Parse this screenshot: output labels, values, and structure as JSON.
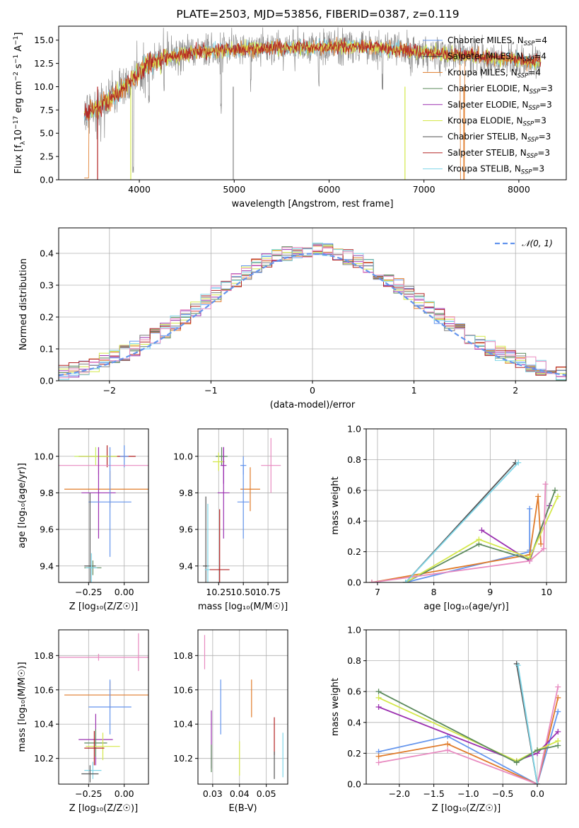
{
  "colors": {
    "tab_blue": "#1f77b4",
    "corn": "#6495ed",
    "orange": "#e07b2a",
    "green": "#5c8a5c",
    "purple": "#9b30b0",
    "yellow": "#d4e84a",
    "gray": "#808080",
    "red": "#b22222",
    "cyan": "#7fd6e8",
    "pink": "#e88ac0",
    "lime": "#c8f060"
  },
  "chart_data": [
    {
      "id": "spectrum",
      "type": "line",
      "title": "PLATE=2503, MJD=53856, FIBERID=0387, z=0.119",
      "xlabel": "wavelength [Angstrom, rest frame]",
      "ylabel": "Flux [f_λ10^{-17} erg cm^{-2} s^{-1} A^{-1}]",
      "xlim": [
        3150,
        8500
      ],
      "ylim": [
        0,
        16.5
      ],
      "xticks": [
        4000,
        5000,
        6000,
        7000,
        8000
      ],
      "yticks": [
        0.0,
        2.5,
        5.0,
        7.5,
        10.0,
        12.5,
        15.0
      ],
      "ytick_labels": [
        "0.0",
        "2.5",
        "5.0",
        "7.5",
        "10.0",
        "12.5",
        "15.0"
      ],
      "legend_position": "right",
      "legend": [
        {
          "base": "Chabrier MILES, N",
          "sub": "SSP",
          "tail": "=4",
          "color": "#6495ed"
        },
        {
          "base": "Salpeter MILES, N",
          "sub": "SSP",
          "tail": "=4",
          "color": "#333333"
        },
        {
          "base": "Kroupa MILES, N",
          "sub": "SSP",
          "tail": "=4",
          "color": "#e07b2a"
        },
        {
          "base": "Chabrier ELODIE, N",
          "sub": "SSP",
          "tail": "=3",
          "color": "#5c8a5c"
        },
        {
          "base": "Salpeter ELODIE, N",
          "sub": "SSP",
          "tail": "=3",
          "color": "#9b30b0"
        },
        {
          "base": "Kroupa ELODIE, N",
          "sub": "SSP",
          "tail": "=3",
          "color": "#d4e84a"
        },
        {
          "base": "Chabrier STELIB, N",
          "sub": "SSP",
          "tail": "=3",
          "color": "#555555"
        },
        {
          "base": "Salpeter STELIB, N",
          "sub": "SSP",
          "tail": "=3",
          "color": "#b22222"
        },
        {
          "base": "Kroupa STELIB, N",
          "sub": "SSP",
          "tail": "=3",
          "color": "#7fd6e8"
        }
      ],
      "continuum": [
        [
          3420,
          7.0
        ],
        [
          3600,
          8.0
        ],
        [
          3800,
          9.5
        ],
        [
          3950,
          11.0
        ],
        [
          4100,
          12.5
        ],
        [
          4300,
          13.2
        ],
        [
          4600,
          13.8
        ],
        [
          5000,
          14.0
        ],
        [
          5500,
          14.2
        ],
        [
          6000,
          14.3
        ],
        [
          6500,
          14.2
        ],
        [
          7000,
          13.7
        ],
        [
          7500,
          13.3
        ],
        [
          8000,
          12.8
        ],
        [
          8230,
          12.5
        ]
      ],
      "absorption_lines": [
        [
          3934,
          0.5
        ],
        [
          4102,
          8.0
        ],
        [
          4861,
          7.0
        ],
        [
          5175,
          9.0
        ],
        [
          5890,
          10.0
        ],
        [
          6563,
          9.5
        ],
        [
          6860,
          11.0
        ],
        [
          7600,
          11.0
        ]
      ]
    },
    {
      "id": "residuals",
      "type": "histogram",
      "xlabel": "(data-model)/error",
      "ylabel": "Normed distribution",
      "xlim": [
        -2.5,
        2.5
      ],
      "ylim": [
        0,
        0.48
      ],
      "xticks": [
        -2,
        -1,
        0,
        1,
        2
      ],
      "xtick_labels": [
        "−2",
        "−1",
        "0",
        "1",
        "2"
      ],
      "yticks": [
        0.0,
        0.1,
        0.2,
        0.3,
        0.4
      ],
      "ytick_labels": [
        "0.0",
        "0.1",
        "0.2",
        "0.3",
        "0.4"
      ],
      "legend": {
        "label": "𝒩(0, 1)",
        "color": "#6495ed"
      },
      "bin_width": 0.1,
      "grid": true
    },
    {
      "id": "age_vs_Z",
      "type": "errorbar",
      "xlabel": "Z [log₁₀(Z/Z☉)]",
      "ylabel": "age  [log₁₀(age/yr)]",
      "xlim": [
        -0.46,
        0.17
      ],
      "ylim": [
        9.31,
        10.15
      ],
      "xticks": [
        -0.25,
        0.0
      ],
      "xtick_labels": [
        "−0.25",
        "0.00"
      ],
      "yticks": [
        9.4,
        9.6,
        9.8,
        10.0
      ],
      "ytick_labels": [
        "9.4",
        "9.6",
        "9.8",
        "10.0"
      ],
      "points": [
        {
          "x": -0.12,
          "y": 10.0,
          "xerr": 0.2,
          "yerr": 0.06,
          "color": "#b22222"
        },
        {
          "x": -0.2,
          "y": 10.0,
          "xerr": 0.15,
          "yerr": 0.05,
          "color": "#c8f060"
        },
        {
          "x": 0.0,
          "y": 10.0,
          "xerr": 0.03,
          "yerr": 0.06,
          "color": "#6495ed"
        },
        {
          "x": -0.18,
          "y": 9.95,
          "xerr": 0.42,
          "yerr": 0.05,
          "color": "#e88ac0"
        },
        {
          "x": -0.1,
          "y": 9.82,
          "xerr": 0.32,
          "yerr": 0.1,
          "color": "#e07b2a"
        },
        {
          "x": -0.18,
          "y": 9.8,
          "xerr": 0.12,
          "yerr": 0.25,
          "color": "#9b30b0"
        },
        {
          "x": -0.1,
          "y": 9.75,
          "xerr": 0.15,
          "yerr": 0.3,
          "color": "#6495ed"
        },
        {
          "x": -0.24,
          "y": 9.4,
          "xerr": 0.04,
          "yerr": 0.4,
          "color": "#555555"
        },
        {
          "x": -0.22,
          "y": 9.39,
          "xerr": 0.06,
          "yerr": 0.04,
          "color": "#5c8a5c"
        },
        {
          "x": -0.23,
          "y": 9.39,
          "xerr": 0.04,
          "yerr": 0.08,
          "color": "#7fd6e8"
        }
      ]
    },
    {
      "id": "age_vs_mass",
      "type": "errorbar",
      "xlabel": "mass [log₁₀(M/M☉)]",
      "ylabel": "",
      "xlim": [
        10.04,
        10.95
      ],
      "ylim": [
        9.31,
        10.15
      ],
      "xticks": [
        10.25,
        10.5,
        10.75
      ],
      "xtick_labels": [
        "10.25",
        "10.50",
        "10.75"
      ],
      "yticks": [
        9.4,
        9.6,
        9.8,
        10.0
      ],
      "ytick_labels": [
        "9.4",
        "9.6",
        "9.8",
        "10.0"
      ],
      "points": [
        {
          "x": 10.28,
          "y": 10.0,
          "xerr": 0.06,
          "yerr": 0.05,
          "color": "#5c8a5c"
        },
        {
          "x": 10.25,
          "y": 9.97,
          "xerr": 0.06,
          "yerr": 0.05,
          "color": "#d4e84a"
        },
        {
          "x": 10.3,
          "y": 9.95,
          "xerr": 0.03,
          "yerr": 0.1,
          "color": "#9b30b0"
        },
        {
          "x": 10.5,
          "y": 9.95,
          "xerr": 0.03,
          "yerr": 0.05,
          "color": "#6495ed"
        },
        {
          "x": 10.78,
          "y": 9.95,
          "xerr": 0.1,
          "yerr": 0.15,
          "color": "#e88ac0"
        },
        {
          "x": 10.57,
          "y": 9.82,
          "xerr": 0.1,
          "yerr": 0.12,
          "color": "#e07b2a"
        },
        {
          "x": 10.3,
          "y": 9.8,
          "xerr": 0.06,
          "yerr": 0.25,
          "color": "#9b30b0"
        },
        {
          "x": 10.5,
          "y": 9.75,
          "xerr": 0.06,
          "yerr": 0.2,
          "color": "#6495ed"
        },
        {
          "x": 10.12,
          "y": 9.4,
          "xerr": 0.03,
          "yerr": 0.38,
          "color": "#555555"
        },
        {
          "x": 10.14,
          "y": 9.38,
          "xerr": 0.03,
          "yerr": 0.36,
          "color": "#7fd6e8"
        },
        {
          "x": 10.26,
          "y": 9.38,
          "xerr": 0.1,
          "yerr": 0.33,
          "color": "#b22222"
        }
      ]
    },
    {
      "id": "weight_vs_age",
      "type": "line",
      "xlabel": "age  [log₁₀(age/yr)]",
      "ylabel": "mass weight",
      "xlim": [
        6.8,
        10.35
      ],
      "ylim": [
        0,
        1.0
      ],
      "xticks": [
        7,
        8,
        9,
        10
      ],
      "xtick_labels": [
        "7",
        "8",
        "9",
        "10"
      ],
      "yticks": [
        0.0,
        0.2,
        0.4,
        0.6,
        0.8,
        1.0
      ],
      "ytick_labels": [
        "0.0",
        "0.2",
        "0.4",
        "0.6",
        "0.8",
        "1.0"
      ],
      "series": [
        {
          "color": "#6495ed",
          "x": [
            7.5,
            9.7,
            9.7,
            9.7
          ],
          "y": [
            0.0,
            0.2,
            0.48,
            0.21
          ]
        },
        {
          "color": "#e07b2a",
          "x": [
            6.9,
            9.7,
            9.85,
            9.9
          ],
          "y": [
            0.0,
            0.18,
            0.56,
            0.25
          ]
        },
        {
          "color": "#9b30b0",
          "x": [
            8.85,
            9.7,
            10.05
          ],
          "y": [
            0.34,
            0.14,
            0.5
          ]
        },
        {
          "color": "#5c8a5c",
          "x": [
            7.5,
            8.8,
            9.7,
            10.15
          ],
          "y": [
            0.0,
            0.25,
            0.15,
            0.6
          ]
        },
        {
          "color": "#d4e84a",
          "x": [
            7.5,
            8.8,
            9.7,
            10.2
          ],
          "y": [
            0.0,
            0.28,
            0.16,
            0.56
          ]
        },
        {
          "color": "#e88ac0",
          "x": [
            6.9,
            9.7,
            9.95,
            9.98
          ],
          "y": [
            0.0,
            0.14,
            0.22,
            0.64
          ]
        },
        {
          "color": "#555555",
          "x": [
            7.5,
            9.45
          ],
          "y": [
            0.0,
            0.78
          ]
        },
        {
          "color": "#7fd6e8",
          "x": [
            7.5,
            9.5
          ],
          "y": [
            0.0,
            0.78
          ]
        }
      ]
    },
    {
      "id": "mass_vs_Z",
      "type": "errorbar",
      "xlabel": "Z [log₁₀(Z/Z☉)]",
      "ylabel": "mass [log₁₀(M/M☉)]",
      "xlim": [
        -0.46,
        0.17
      ],
      "ylim": [
        10.05,
        10.95
      ],
      "xticks": [
        -0.25,
        0.0
      ],
      "xtick_labels": [
        "−0.25",
        "0.00"
      ],
      "yticks": [
        10.2,
        10.4,
        10.6,
        10.8
      ],
      "ytick_labels": [
        "10.2",
        "10.4",
        "10.6",
        "10.8"
      ],
      "points": [
        {
          "x": -0.18,
          "y": 10.79,
          "xerr": 0.42,
          "yerr": 0.02,
          "color": "#e88ac0"
        },
        {
          "x": 0.1,
          "y": 10.82,
          "xerr": 0.0,
          "yerr": 0.11,
          "color": "#e88ac0"
        },
        {
          "x": -0.1,
          "y": 10.57,
          "xerr": 0.32,
          "yerr": 0.08,
          "color": "#e07b2a"
        },
        {
          "x": -0.1,
          "y": 10.5,
          "xerr": 0.15,
          "yerr": 0.16,
          "color": "#6495ed"
        },
        {
          "x": -0.2,
          "y": 10.31,
          "xerr": 0.12,
          "yerr": 0.15,
          "color": "#9b30b0"
        },
        {
          "x": -0.2,
          "y": 10.29,
          "xerr": 0.08,
          "yerr": 0.08,
          "color": "#5c8a5c"
        },
        {
          "x": -0.15,
          "y": 10.27,
          "xerr": 0.12,
          "yerr": 0.08,
          "color": "#d4e84a"
        },
        {
          "x": -0.21,
          "y": 10.26,
          "xerr": 0.07,
          "yerr": 0.1,
          "color": "#b22222"
        },
        {
          "x": -0.22,
          "y": 10.13,
          "xerr": 0.06,
          "yerr": 0.05,
          "color": "#7fd6e8"
        },
        {
          "x": -0.24,
          "y": 10.11,
          "xerr": 0.06,
          "yerr": 0.05,
          "color": "#555555"
        }
      ]
    },
    {
      "id": "mass_vs_EBV",
      "type": "errorbar",
      "xlabel": "E(B-V)",
      "ylabel": "",
      "xlim": [
        0.0245,
        0.058
      ],
      "ylim": [
        10.05,
        10.95
      ],
      "xticks": [
        0.03,
        0.04,
        0.05
      ],
      "xtick_labels": [
        "0.03",
        "0.04",
        "0.05"
      ],
      "yticks": [
        10.2,
        10.4,
        10.6,
        10.8
      ],
      "ytick_labels": [
        "10.2",
        "10.4",
        "10.6",
        "10.8"
      ],
      "points": [
        {
          "x": 0.027,
          "y": 10.82,
          "xerr": 0,
          "yerr": 0.1,
          "color": "#e88ac0"
        },
        {
          "x": 0.0295,
          "y": 10.31,
          "xerr": 0,
          "yerr": 0.17,
          "color": "#9b30b0"
        },
        {
          "x": 0.0295,
          "y": 10.2,
          "xerr": 0,
          "yerr": 0.08,
          "color": "#5c8a5c"
        },
        {
          "x": 0.033,
          "y": 10.5,
          "xerr": 0,
          "yerr": 0.16,
          "color": "#6495ed"
        },
        {
          "x": 0.04,
          "y": 10.2,
          "xerr": 0,
          "yerr": 0.1,
          "color": "#d4e84a"
        },
        {
          "x": 0.0445,
          "y": 10.55,
          "xerr": 0,
          "yerr": 0.11,
          "color": "#e07b2a"
        },
        {
          "x": 0.053,
          "y": 10.33,
          "xerr": 0,
          "yerr": 0.11,
          "color": "#b22222"
        },
        {
          "x": 0.053,
          "y": 10.16,
          "xerr": 0,
          "yerr": 0.08,
          "color": "#555555"
        },
        {
          "x": 0.0562,
          "y": 10.22,
          "xerr": 0,
          "yerr": 0.13,
          "color": "#7fd6e8"
        }
      ]
    },
    {
      "id": "weight_vs_Z",
      "type": "line",
      "xlabel": "Z [log₁₀(Z/Z☉)]",
      "ylabel": "mass weight",
      "xlim": [
        -2.48,
        0.42
      ],
      "ylim": [
        0,
        1.0
      ],
      "xticks": [
        -2.0,
        -1.5,
        -1.0,
        -0.5,
        0.0
      ],
      "xtick_labels": [
        "−2.0",
        "−1.5",
        "−1.0",
        "−0.5",
        "0.0"
      ],
      "yticks": [
        0.0,
        0.2,
        0.4,
        0.6,
        0.8,
        1.0
      ],
      "ytick_labels": [
        "0.0",
        "0.2",
        "0.4",
        "0.6",
        "0.8",
        "1.0"
      ],
      "series": [
        {
          "color": "#6495ed",
          "x": [
            -2.3,
            -1.3,
            0.0,
            0.3
          ],
          "y": [
            0.21,
            0.31,
            0.0,
            0.47
          ]
        },
        {
          "color": "#e07b2a",
          "x": [
            -2.3,
            -1.3,
            0.0,
            0.3
          ],
          "y": [
            0.18,
            0.26,
            0.0,
            0.56
          ]
        },
        {
          "color": "#e88ac0",
          "x": [
            -2.3,
            -1.3,
            0.0,
            0.3
          ],
          "y": [
            0.14,
            0.22,
            0.0,
            0.63
          ]
        },
        {
          "color": "#9b30b0",
          "x": [
            -2.3,
            -0.3,
            0.0,
            0.3
          ],
          "y": [
            0.5,
            0.15,
            0.2,
            0.34
          ]
        },
        {
          "color": "#d4e84a",
          "x": [
            -2.3,
            -0.3,
            0.0,
            0.3
          ],
          "y": [
            0.56,
            0.15,
            0.22,
            0.28
          ]
        },
        {
          "color": "#5c8a5c",
          "x": [
            -2.3,
            -0.3,
            0.0,
            0.3
          ],
          "y": [
            0.6,
            0.14,
            0.22,
            0.25
          ]
        },
        {
          "color": "#555555",
          "x": [
            -0.3,
            0.0
          ],
          "y": [
            0.78,
            0.0
          ]
        },
        {
          "color": "#7fd6e8",
          "x": [
            -0.28,
            0.0
          ],
          "y": [
            0.77,
            0.0
          ]
        }
      ]
    }
  ]
}
